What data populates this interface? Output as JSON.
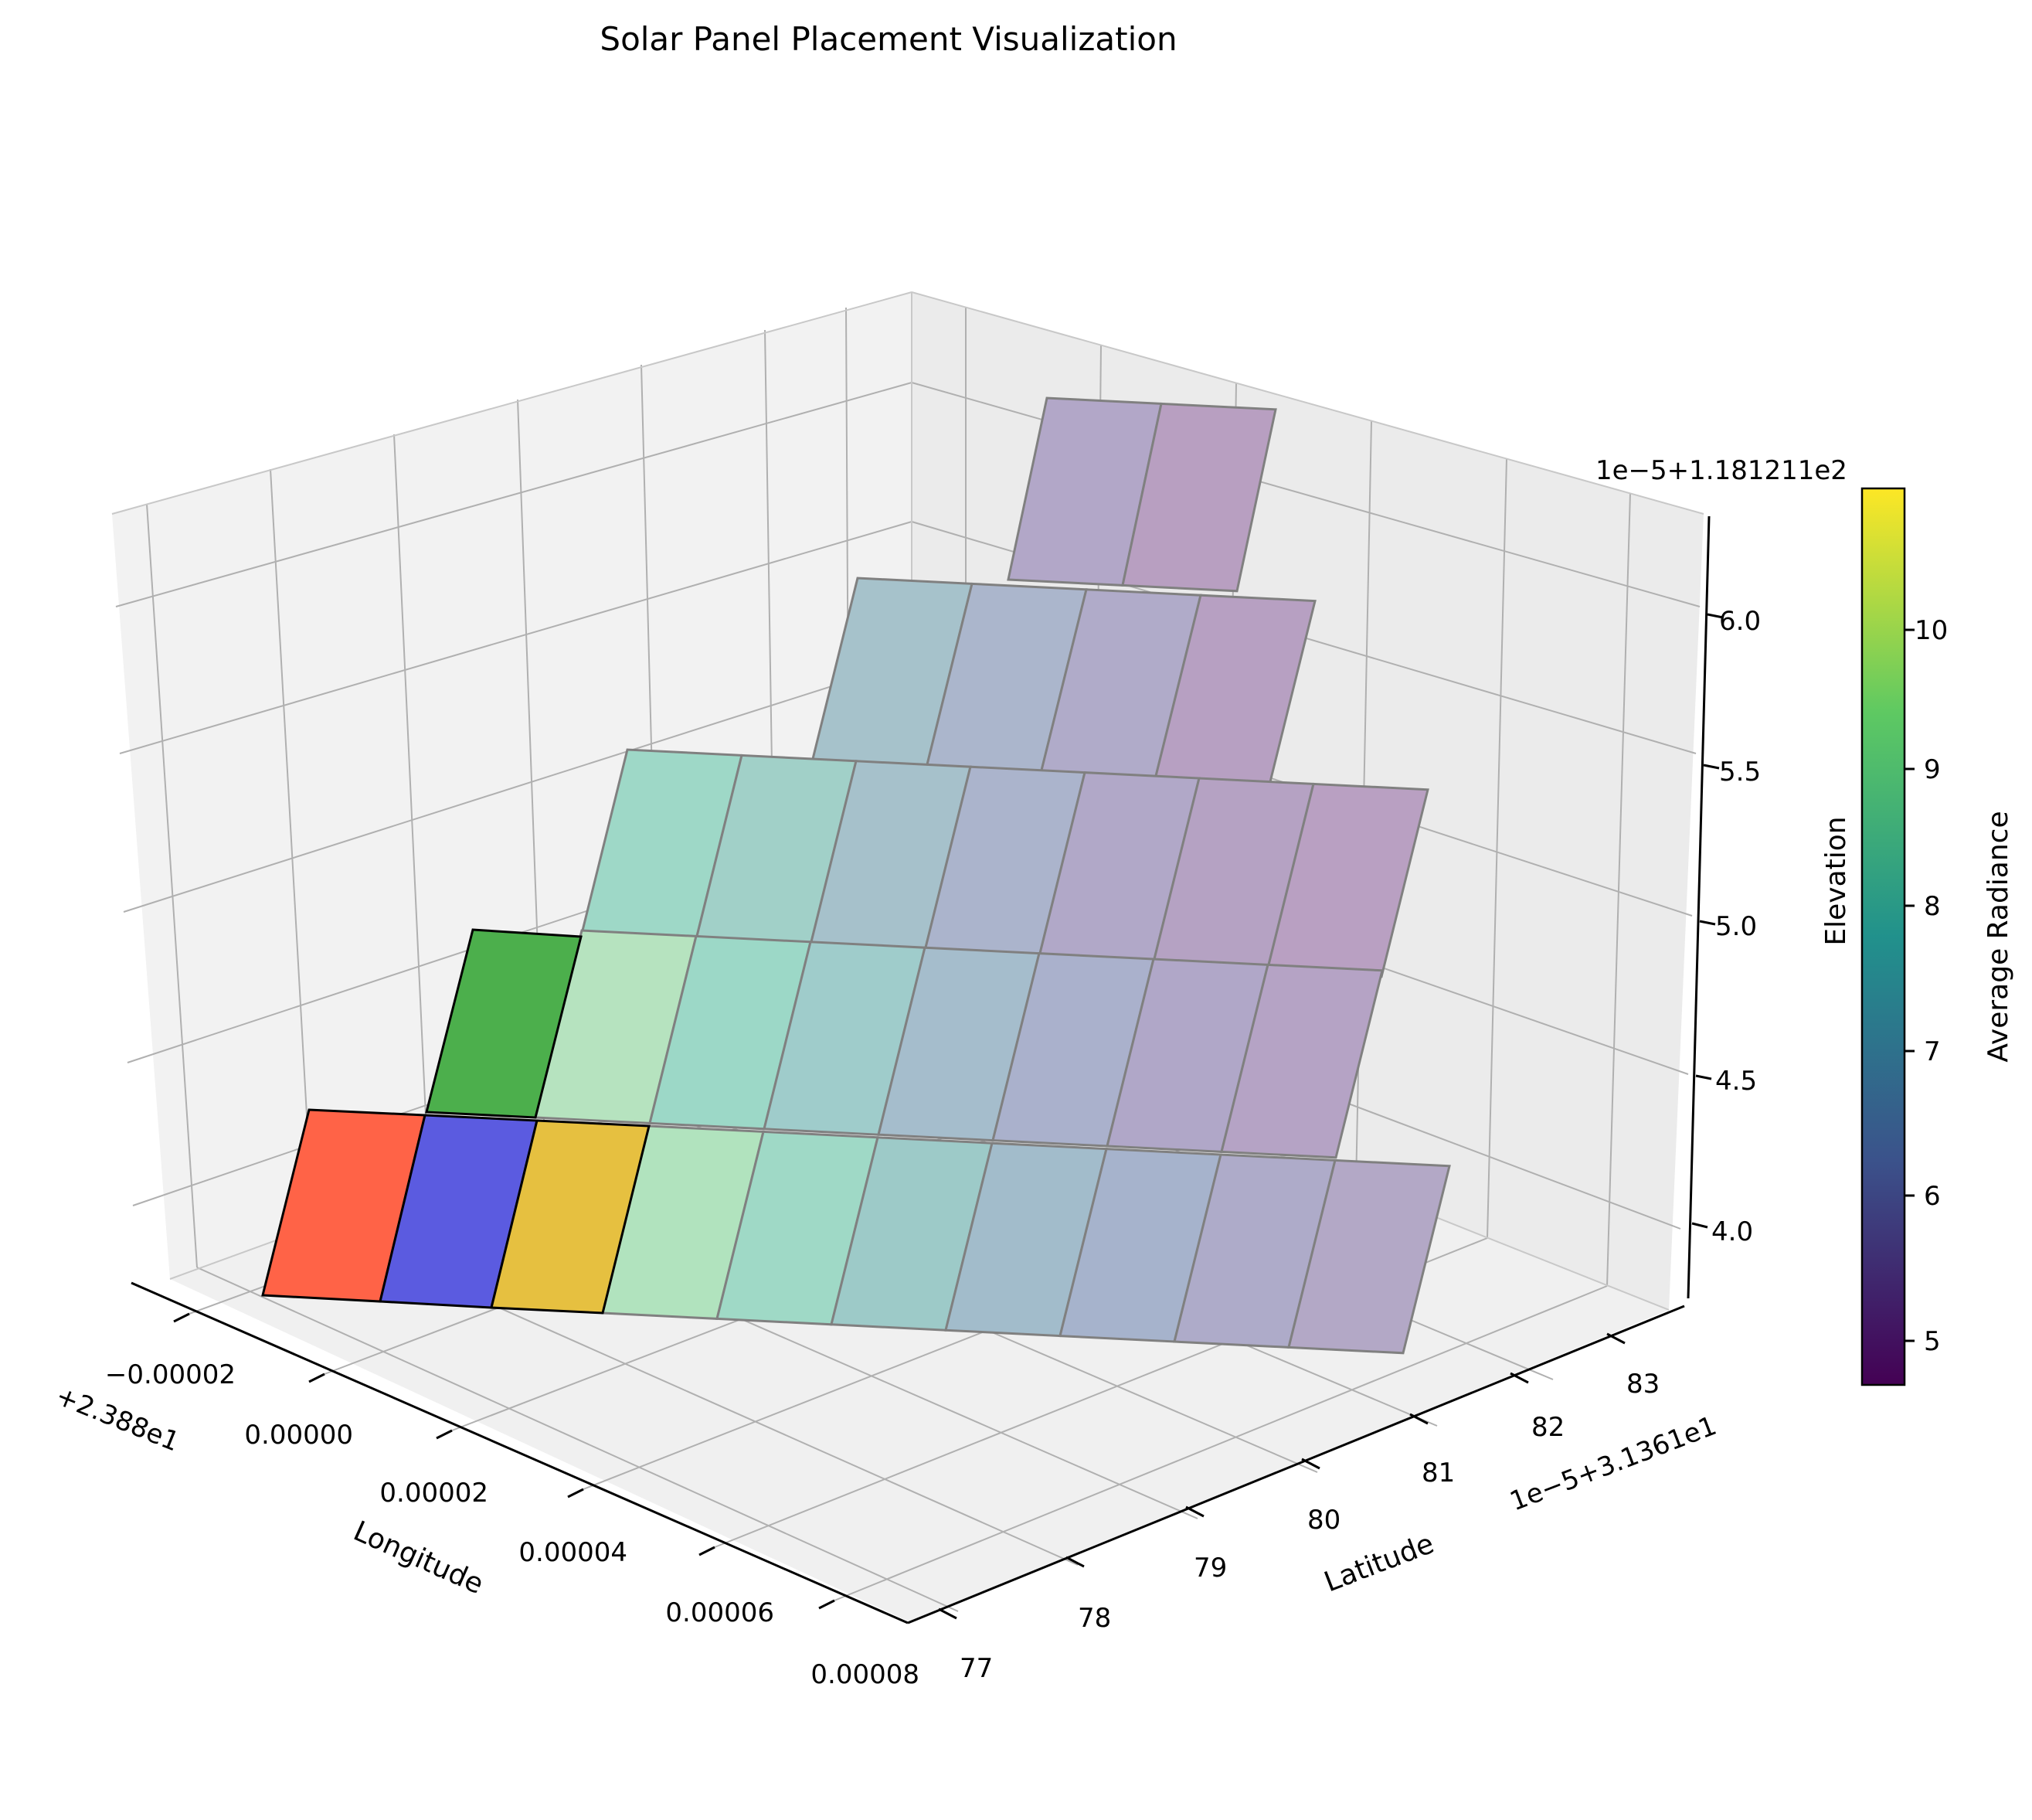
{
  "chart_data": {
    "type": "surface3d",
    "title": "Solar Panel Placement Visualization",
    "xlabel": "Longitude",
    "ylabel": "Latitude",
    "zlabel": "Elevation",
    "x_offset_label": "+2.388e1",
    "y_offset_label": "1e−5+3.1361e1",
    "z_offset_label": "1e−5+1.181211e2",
    "x_ticks": [
      "−0.00002",
      "0.00000",
      "0.00002",
      "0.00004",
      "0.00006",
      "0.00008"
    ],
    "y_ticks": [
      "77",
      "78",
      "79",
      "80",
      "81",
      "82",
      "83"
    ],
    "z_ticks": [
      "4.0",
      "4.5",
      "5.0",
      "5.5",
      "6.0"
    ],
    "colorbar": {
      "label": "Average Radiance",
      "ticks": [
        "5",
        "6",
        "7",
        "8",
        "9",
        "10"
      ],
      "range": [
        4.7,
        10.9
      ],
      "colormap": [
        "#440154",
        "#3b528b",
        "#21918c",
        "#5ec962",
        "#fde725"
      ]
    },
    "highlighted_panels": [
      {
        "name": "panel-red",
        "color": "#ff6347"
      },
      {
        "name": "panel-blue",
        "color": "#5b5be0"
      },
      {
        "name": "panel-gold",
        "color": "#e6c040"
      },
      {
        "name": "panel-green",
        "color": "#4caf4c"
      }
    ],
    "surface_rows": [
      {
        "elevation": 4.0,
        "colors": [
          "#b1e3be",
          "#9fd9c6",
          "#9dcac8",
          "#a2bccb",
          "#a6b3cc",
          "#aeabc9",
          "#b3a8c6"
        ]
      },
      {
        "elevation": 4.5,
        "colors": [
          "#b6e3bf",
          "#9cd8c7",
          "#9fcccb",
          "#a5bdcc",
          "#aab1cc",
          "#b0a7c8",
          "#b5a3c5"
        ]
      },
      {
        "elevation": 5.0,
        "colors": [
          "#9ed8c7",
          "#a1d0c8",
          "#a6c1cb",
          "#abb4cc",
          "#b1a8c8",
          "#b5a2c3",
          "#b9a0c2"
        ]
      },
      {
        "elevation": 5.5,
        "colors": [
          "#a6c2cb",
          "#abb6cc",
          "#b0abc9",
          "#b7a0c2"
        ]
      },
      {
        "elevation": 6.0,
        "colors": [
          "#b2a7c8",
          "#b89fc1"
        ]
      }
    ]
  }
}
